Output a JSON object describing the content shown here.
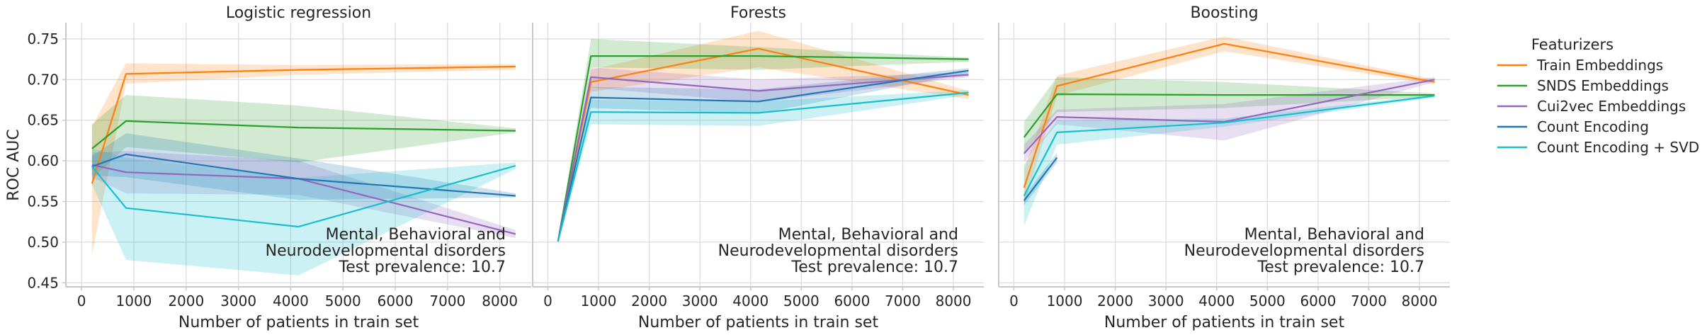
{
  "chart_data": {
    "type": "line",
    "x_unit": "Number of patients in train set",
    "ylabel": "ROC AUC",
    "xlabel": "Number of patients in train set",
    "xlim": [
      -300,
      8600
    ],
    "ylim": [
      0.445,
      0.77
    ],
    "x_ticks": [
      "0",
      "1000",
      "2000",
      "3000",
      "4000",
      "5000",
      "6000",
      "7000",
      "8000"
    ],
    "y_ticks": [
      "0.45",
      "0.50",
      "0.55",
      "0.60",
      "0.65",
      "0.70",
      "0.75"
    ],
    "grid": true,
    "legend": {
      "title": "Featurizers",
      "placement": "right",
      "entries": [
        {
          "name": "Train Embeddings",
          "color": "#ff7f0e"
        },
        {
          "name": "SNDS Embeddings",
          "color": "#2ca02c"
        },
        {
          "name": "Cui2vec Embeddings",
          "color": "#9467bd"
        },
        {
          "name": "Count Encoding",
          "color": "#1f77b4"
        },
        {
          "name": "Count Encoding + SVD",
          "color": "#17becf"
        }
      ]
    },
    "panels": [
      {
        "title": "Logistic regression",
        "annotation": [
          "Mental, Behavioral and",
          "Neurodevelopmental disorders",
          "Test prevalence: 10.7"
        ],
        "series": [
          {
            "name": "Train Embeddings",
            "color": "#ff7f0e",
            "x": [
              200,
              850,
              4150,
              8300
            ],
            "y": [
              0.572,
              0.707,
              0.712,
              0.716
            ],
            "lo": [
              0.485,
              0.695,
              0.706,
              0.712
            ],
            "hi": [
              0.642,
              0.72,
              0.718,
              0.719
            ]
          },
          {
            "name": "SNDS Embeddings",
            "color": "#2ca02c",
            "x": [
              200,
              850,
              4150,
              8300
            ],
            "y": [
              0.615,
              0.649,
              0.641,
              0.637
            ],
            "lo": [
              0.578,
              0.617,
              0.598,
              0.635
            ],
            "hi": [
              0.645,
              0.681,
              0.668,
              0.64
            ]
          },
          {
            "name": "Cui2vec Embeddings",
            "color": "#9467bd",
            "x": [
              200,
              850,
              4150,
              8300
            ],
            "y": [
              0.595,
              0.586,
              0.578,
              0.51
            ],
            "lo": [
              0.58,
              0.56,
              0.558,
              0.505
            ],
            "hi": [
              0.61,
              0.612,
              0.6,
              0.515
            ]
          },
          {
            "name": "Count Encoding",
            "color": "#1f77b4",
            "x": [
              200,
              850,
              4150,
              8300
            ],
            "y": [
              0.593,
              0.608,
              0.578,
              0.557
            ],
            "lo": [
              0.582,
              0.58,
              0.552,
              0.555
            ],
            "hi": [
              0.606,
              0.634,
              0.603,
              0.56
            ]
          },
          {
            "name": "Count Encoding + SVD",
            "color": "#17becf",
            "x": [
              200,
              850,
              4150,
              8300
            ],
            "y": [
              0.593,
              0.542,
              0.519,
              0.594
            ],
            "lo": [
              0.571,
              0.478,
              0.459,
              0.59
            ],
            "hi": [
              0.615,
              0.604,
              0.579,
              0.598
            ]
          }
        ]
      },
      {
        "title": "Forests",
        "annotation": [
          "Mental, Behavioral and",
          "Neurodevelopmental disorders",
          "Test prevalence: 10.7"
        ],
        "series": [
          {
            "name": "Train Embeddings",
            "color": "#ff7f0e",
            "x": [
              200,
              850,
              4150,
              8300
            ],
            "y": [
              0.501,
              0.697,
              0.738,
              0.681
            ],
            "lo": [
              0.499,
              0.685,
              0.715,
              0.676
            ],
            "hi": [
              0.503,
              0.712,
              0.76,
              0.686
            ]
          },
          {
            "name": "SNDS Embeddings",
            "color": "#2ca02c",
            "x": [
              200,
              850,
              4150,
              8300
            ],
            "y": [
              0.501,
              0.729,
              0.729,
              0.725
            ],
            "lo": [
              0.499,
              0.715,
              0.712,
              0.722
            ],
            "hi": [
              0.503,
              0.75,
              0.74,
              0.727
            ]
          },
          {
            "name": "Cui2vec Embeddings",
            "color": "#9467bd",
            "x": [
              200,
              850,
              4150,
              8300
            ],
            "y": [
              0.501,
              0.703,
              0.686,
              0.706
            ],
            "lo": [
              0.499,
              0.69,
              0.672,
              0.703
            ],
            "hi": [
              0.503,
              0.715,
              0.7,
              0.709
            ]
          },
          {
            "name": "Count Encoding",
            "color": "#1f77b4",
            "x": [
              200,
              850,
              4150,
              8300
            ],
            "y": [
              0.501,
              0.678,
              0.673,
              0.711
            ],
            "lo": [
              0.499,
              0.665,
              0.658,
              0.708
            ],
            "hi": [
              0.503,
              0.691,
              0.688,
              0.714
            ]
          },
          {
            "name": "Count Encoding + SVD",
            "color": "#17becf",
            "x": [
              200,
              850,
              4150,
              8300
            ],
            "y": [
              0.501,
              0.66,
              0.659,
              0.684
            ],
            "lo": [
              0.499,
              0.645,
              0.643,
              0.681
            ],
            "hi": [
              0.503,
              0.675,
              0.673,
              0.687
            ]
          }
        ]
      },
      {
        "title": "Boosting",
        "annotation": [
          "Mental, Behavioral and",
          "Neurodevelopmental disorders",
          "Test prevalence: 10.7"
        ],
        "series": [
          {
            "name": "Train Embeddings",
            "color": "#ff7f0e",
            "x": [
              200,
              850,
              4150,
              8300
            ],
            "y": [
              0.567,
              0.692,
              0.744,
              0.697
            ],
            "lo": [
              0.545,
              0.68,
              0.735,
              0.694
            ],
            "hi": [
              0.59,
              0.705,
              0.753,
              0.7
            ]
          },
          {
            "name": "SNDS Embeddings",
            "color": "#2ca02c",
            "x": [
              200,
              850,
              4150,
              8300
            ],
            "y": [
              0.629,
              0.682,
              0.681,
              0.681
            ],
            "lo": [
              0.61,
              0.66,
              0.665,
              0.679
            ],
            "hi": [
              0.648,
              0.703,
              0.697,
              0.683
            ]
          },
          {
            "name": "Cui2vec Embeddings",
            "color": "#9467bd",
            "x": [
              200,
              850,
              4150,
              8300
            ],
            "y": [
              0.609,
              0.654,
              0.648,
              0.7
            ],
            "lo": [
              0.598,
              0.645,
              0.625,
              0.697
            ],
            "hi": [
              0.62,
              0.663,
              0.67,
              0.703
            ]
          },
          {
            "name": "Count Encoding",
            "color": "#1f77b4",
            "x": [
              200,
              850
            ],
            "y": [
              0.551,
              0.604
            ],
            "lo": [
              0.545,
              0.598
            ],
            "hi": [
              0.557,
              0.61
            ]
          },
          {
            "name": "Count Encoding + SVD",
            "color": "#17becf",
            "x": [
              200,
              850,
              4150,
              8300
            ],
            "y": [
              0.557,
              0.635,
              0.647,
              0.68
            ],
            "lo": [
              0.52,
              0.62,
              0.642,
              0.678
            ],
            "hi": [
              0.595,
              0.65,
              0.652,
              0.682
            ]
          }
        ]
      }
    ]
  }
}
